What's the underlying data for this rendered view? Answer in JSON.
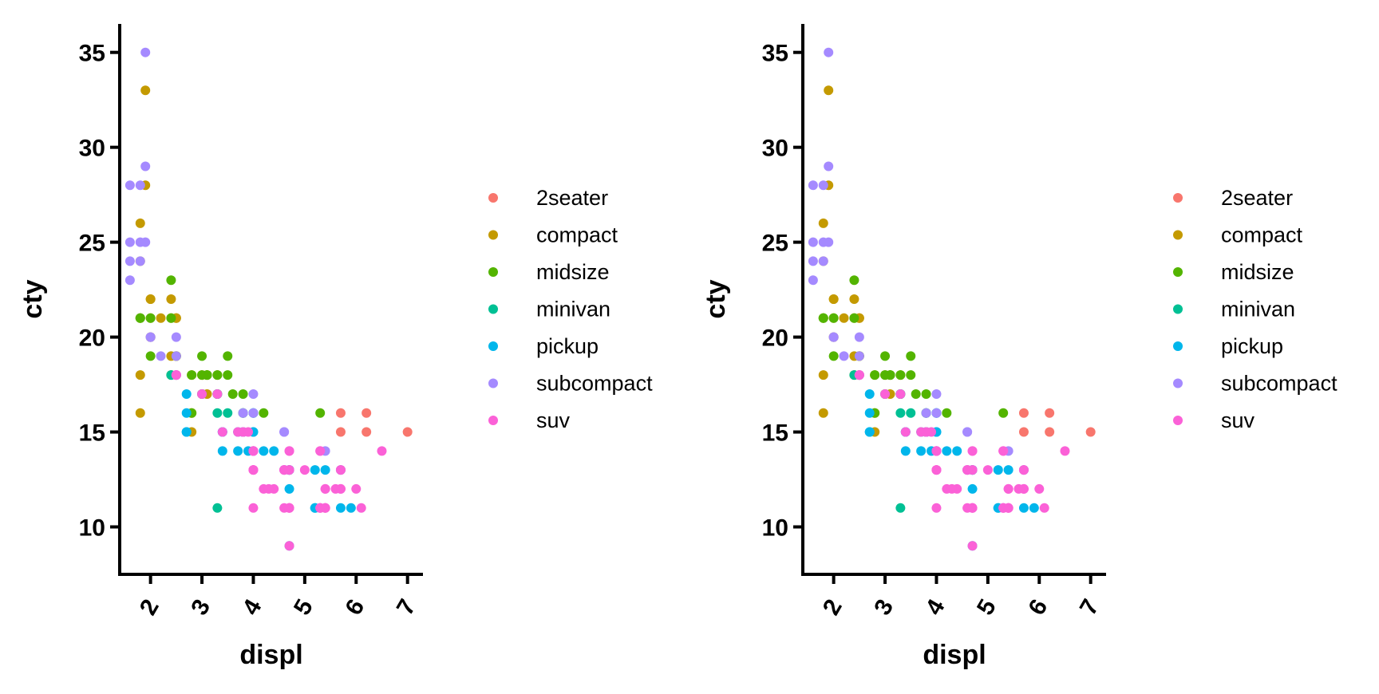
{
  "chart_data": [
    {
      "type": "scatter",
      "xlabel": "displ",
      "ylabel": "cty",
      "xlim": [
        1.4,
        7.3
      ],
      "ylim": [
        7.5,
        36.5
      ],
      "xticks": [
        "2",
        "3",
        "4",
        "5",
        "6",
        "7"
      ],
      "yticks": [
        "10",
        "15",
        "20",
        "25",
        "30",
        "35"
      ],
      "grid": false,
      "legend_position": "right",
      "colors": {
        "2seater": "#F8766D",
        "compact": "#C49A00",
        "midsize": "#53B400",
        "minivan": "#00C094",
        "pickup": "#00B6EB",
        "subcompact": "#A58AFF",
        "suv": "#FB61D7"
      },
      "series": [
        {
          "name": "2seater",
          "x": [
            5.7,
            5.7,
            6.2,
            6.2,
            7.0
          ],
          "y": [
            16,
            15,
            15,
            16,
            15
          ]
        },
        {
          "name": "compact",
          "x": [
            1.8,
            1.8,
            2.0,
            2.0,
            2.8,
            2.8,
            3.1,
            1.8,
            2.0,
            2.8,
            3.1,
            1.8,
            1.8,
            1.9,
            2.0,
            2.4,
            2.4,
            2.2,
            2.5,
            2.5,
            2.5,
            2.4,
            2.4,
            3.0,
            3.0,
            3.3,
            1.9,
            2.0,
            2.5
          ],
          "y": [
            18,
            21,
            20,
            21,
            16,
            18,
            18,
            16,
            20,
            15,
            17,
            26,
            24,
            33,
            22,
            21,
            22,
            21,
            21,
            19,
            21,
            19,
            18,
            18,
            17,
            18,
            28,
            22,
            19
          ]
        },
        {
          "name": "midsize",
          "x": [
            1.8,
            2.0,
            2.8,
            3.1,
            4.2,
            2.4,
            3.1,
            3.5,
            3.6,
            2.4,
            3.0,
            3.3,
            3.8,
            3.8,
            2.5,
            2.5,
            3.5,
            3.0,
            5.3,
            1.8,
            2.0,
            2.8,
            3.3
          ],
          "y": [
            21,
            21,
            18,
            18,
            16,
            21,
            18,
            18,
            17,
            23,
            19,
            18,
            17,
            16,
            19,
            18,
            19,
            18,
            16,
            21,
            19,
            16,
            17
          ]
        },
        {
          "name": "minivan",
          "x": [
            2.4,
            3.0,
            3.3,
            3.3,
            3.8,
            3.8,
            4.0,
            3.3,
            3.8,
            3.5,
            3.3
          ],
          "y": [
            18,
            17,
            16,
            11,
            16,
            15,
            16,
            17,
            15,
            16,
            17
          ]
        },
        {
          "name": "pickup",
          "x": [
            3.7,
            3.9,
            4.7,
            4.7,
            5.2,
            5.2,
            4.7,
            3.7,
            4.7,
            5.2,
            5.7,
            5.9,
            4.2,
            4.4,
            4.6,
            5.4,
            2.7,
            2.7,
            2.7,
            3.4,
            3.4,
            4.0,
            4.0,
            4.0,
            4.7,
            4.7,
            5.7,
            2.7,
            3.4,
            4.0
          ],
          "y": [
            15,
            14,
            13,
            9,
            13,
            11,
            12,
            14,
            13,
            11,
            13,
            11,
            14,
            14,
            13,
            13,
            15,
            16,
            17,
            15,
            15,
            15,
            16,
            15,
            13,
            13,
            11,
            15,
            14,
            14
          ]
        },
        {
          "name": "subcompact",
          "x": [
            3.8,
            3.8,
            4.0,
            4.6,
            5.4,
            1.6,
            1.6,
            1.6,
            1.6,
            1.8,
            1.8,
            1.8,
            2.0,
            1.9,
            1.9,
            2.2,
            2.5,
            2.5,
            2.5,
            1.9,
            2.0,
            2.5,
            3.8,
            4.0,
            4.6
          ],
          "y": [
            15,
            16,
            17,
            15,
            14,
            28,
            24,
            25,
            23,
            24,
            25,
            28,
            20,
            29,
            35,
            19,
            20,
            19,
            18,
            25,
            20,
            18,
            15,
            16,
            15
          ]
        },
        {
          "name": "suv",
          "x": [
            5.3,
            5.3,
            5.3,
            5.7,
            6.0,
            5.7,
            5.3,
            6.5,
            4.0,
            4.0,
            4.6,
            5.4,
            4.0,
            4.7,
            4.7,
            5.7,
            6.1,
            4.2,
            4.4,
            4.7,
            5.7,
            4.6,
            5.4,
            4.0,
            4.0,
            4.6,
            5.0,
            2.5,
            3.3,
            3.7,
            4.0,
            4.7,
            5.4,
            4.7,
            4.0,
            4.7,
            5.6,
            3.8,
            4.0,
            4.0,
            4.6,
            5.4,
            2.5,
            3.0,
            3.9,
            4.7,
            5.3,
            4.3,
            4.7,
            5.4,
            3.4
          ],
          "y": [
            14,
            11,
            14,
            13,
            12,
            12,
            11,
            14,
            14,
            13,
            13,
            11,
            13,
            11,
            13,
            12,
            11,
            12,
            12,
            11,
            13,
            11,
            12,
            14,
            14,
            13,
            13,
            18,
            17,
            15,
            14,
            9,
            11,
            14,
            11,
            13,
            12,
            15,
            14,
            13,
            13,
            12,
            18,
            17,
            15,
            14,
            11,
            12,
            11,
            11,
            15
          ]
        }
      ]
    },
    {
      "type": "scatter",
      "xlabel": "displ",
      "ylabel": "cty",
      "xlim": [
        1.4,
        7.3
      ],
      "ylim": [
        7.5,
        36.5
      ],
      "xticks": [
        "2",
        "3",
        "4",
        "5",
        "6",
        "7"
      ],
      "yticks": [
        "10",
        "15",
        "20",
        "25",
        "30",
        "35"
      ],
      "grid": false,
      "legend_position": "right",
      "colors": {
        "2seater": "#F8766D",
        "compact": "#C49A00",
        "midsize": "#53B400",
        "minivan": "#00C094",
        "pickup": "#00B6EB",
        "subcompact": "#A58AFF",
        "suv": "#FB61D7"
      },
      "series": [
        {
          "name": "2seater",
          "x": [
            5.7,
            5.7,
            6.2,
            6.2,
            7.0
          ],
          "y": [
            16,
            15,
            15,
            16,
            15
          ]
        },
        {
          "name": "compact",
          "x": [
            1.8,
            1.8,
            2.0,
            2.0,
            2.8,
            2.8,
            3.1,
            1.8,
            2.0,
            2.8,
            3.1,
            1.8,
            1.8,
            1.9,
            2.0,
            2.4,
            2.4,
            2.2,
            2.5,
            2.5,
            2.5,
            2.4,
            2.4,
            3.0,
            3.0,
            3.3,
            1.9,
            2.0,
            2.5
          ],
          "y": [
            18,
            21,
            20,
            21,
            16,
            18,
            18,
            16,
            20,
            15,
            17,
            26,
            24,
            33,
            22,
            21,
            22,
            21,
            21,
            19,
            21,
            19,
            18,
            18,
            17,
            18,
            28,
            22,
            19
          ]
        },
        {
          "name": "midsize",
          "x": [
            1.8,
            2.0,
            2.8,
            3.1,
            4.2,
            2.4,
            3.1,
            3.5,
            3.6,
            2.4,
            3.0,
            3.3,
            3.8,
            3.8,
            2.5,
            2.5,
            3.5,
            3.0,
            5.3,
            1.8,
            2.0,
            2.8,
            3.3
          ],
          "y": [
            21,
            21,
            18,
            18,
            16,
            21,
            18,
            18,
            17,
            23,
            19,
            18,
            17,
            16,
            19,
            18,
            19,
            18,
            16,
            21,
            19,
            16,
            17
          ]
        },
        {
          "name": "minivan",
          "x": [
            2.4,
            3.0,
            3.3,
            3.3,
            3.8,
            3.8,
            4.0,
            3.3,
            3.8,
            3.5,
            3.3
          ],
          "y": [
            18,
            17,
            16,
            11,
            16,
            15,
            16,
            17,
            15,
            16,
            17
          ]
        },
        {
          "name": "pickup",
          "x": [
            3.7,
            3.9,
            4.7,
            4.7,
            5.2,
            5.2,
            4.7,
            3.7,
            4.7,
            5.2,
            5.7,
            5.9,
            4.2,
            4.4,
            4.6,
            5.4,
            2.7,
            2.7,
            2.7,
            3.4,
            3.4,
            4.0,
            4.0,
            4.0,
            4.7,
            4.7,
            5.7,
            2.7,
            3.4,
            4.0
          ],
          "y": [
            15,
            14,
            13,
            9,
            13,
            11,
            12,
            14,
            13,
            11,
            13,
            11,
            14,
            14,
            13,
            13,
            15,
            16,
            17,
            15,
            15,
            15,
            16,
            15,
            13,
            13,
            11,
            15,
            14,
            14
          ]
        },
        {
          "name": "subcompact",
          "x": [
            3.8,
            3.8,
            4.0,
            4.6,
            5.4,
            1.6,
            1.6,
            1.6,
            1.6,
            1.8,
            1.8,
            1.8,
            2.0,
            1.9,
            1.9,
            2.2,
            2.5,
            2.5,
            2.5,
            1.9,
            2.0,
            2.5,
            3.8,
            4.0,
            4.6
          ],
          "y": [
            15,
            16,
            17,
            15,
            14,
            28,
            24,
            25,
            23,
            24,
            25,
            28,
            20,
            29,
            35,
            19,
            20,
            19,
            18,
            25,
            20,
            18,
            15,
            16,
            15
          ]
        },
        {
          "name": "suv",
          "x": [
            5.3,
            5.3,
            5.3,
            5.7,
            6.0,
            5.7,
            5.3,
            6.5,
            4.0,
            4.0,
            4.6,
            5.4,
            4.0,
            4.7,
            4.7,
            5.7,
            6.1,
            4.2,
            4.4,
            4.7,
            5.7,
            4.6,
            5.4,
            4.0,
            4.0,
            4.6,
            5.0,
            2.5,
            3.3,
            3.7,
            4.0,
            4.7,
            5.4,
            4.7,
            4.0,
            4.7,
            5.6,
            3.8,
            4.0,
            4.0,
            4.6,
            5.4,
            2.5,
            3.0,
            3.9,
            4.7,
            5.3,
            4.3,
            4.7,
            5.4,
            3.4
          ],
          "y": [
            14,
            11,
            14,
            13,
            12,
            12,
            11,
            14,
            14,
            13,
            13,
            11,
            13,
            11,
            13,
            12,
            11,
            12,
            12,
            11,
            13,
            11,
            12,
            14,
            14,
            13,
            13,
            18,
            17,
            15,
            14,
            9,
            11,
            14,
            11,
            13,
            12,
            15,
            14,
            13,
            13,
            12,
            18,
            17,
            15,
            14,
            11,
            12,
            11,
            11,
            15
          ]
        }
      ]
    }
  ]
}
